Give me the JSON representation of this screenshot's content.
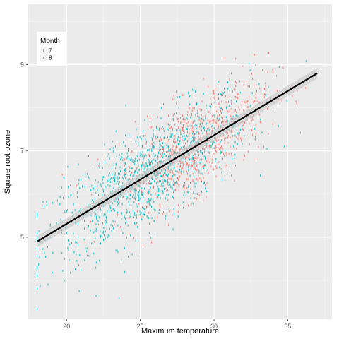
{
  "chart_data": {
    "type": "scatter",
    "title": "",
    "xlabel": "Maximum temperature",
    "ylabel": "Square root ozone",
    "xlim": [
      17.4,
      38.0
    ],
    "ylim": [
      3.1,
      10.4
    ],
    "x_ticks": [
      20,
      25,
      30,
      35
    ],
    "y_ticks": [
      5,
      7,
      9
    ],
    "grid": true,
    "legend": {
      "title": "Month",
      "placement": "top-left",
      "entries": [
        {
          "label": "7",
          "color": "#F8766D"
        },
        {
          "label": "8",
          "color": "#00BFC4"
        }
      ]
    },
    "series": [
      {
        "name": "7",
        "color": "#F8766D",
        "n_points_approx": 900,
        "x_center": 28.5,
        "x_sd": 2.6,
        "y_center": 7.2,
        "y_sd_resid": 0.55
      },
      {
        "name": "8",
        "color": "#00BFC4",
        "n_points_approx": 1100,
        "x_center": 25.5,
        "x_sd": 3.4,
        "y_center": 6.3,
        "y_sd_resid": 0.6
      }
    ],
    "fit_line": {
      "method": "lm",
      "color": "#000000",
      "points": [
        [
          18.0,
          4.9
        ],
        [
          37.0,
          8.8
        ]
      ],
      "ci_color": "#c8c8c8"
    }
  }
}
